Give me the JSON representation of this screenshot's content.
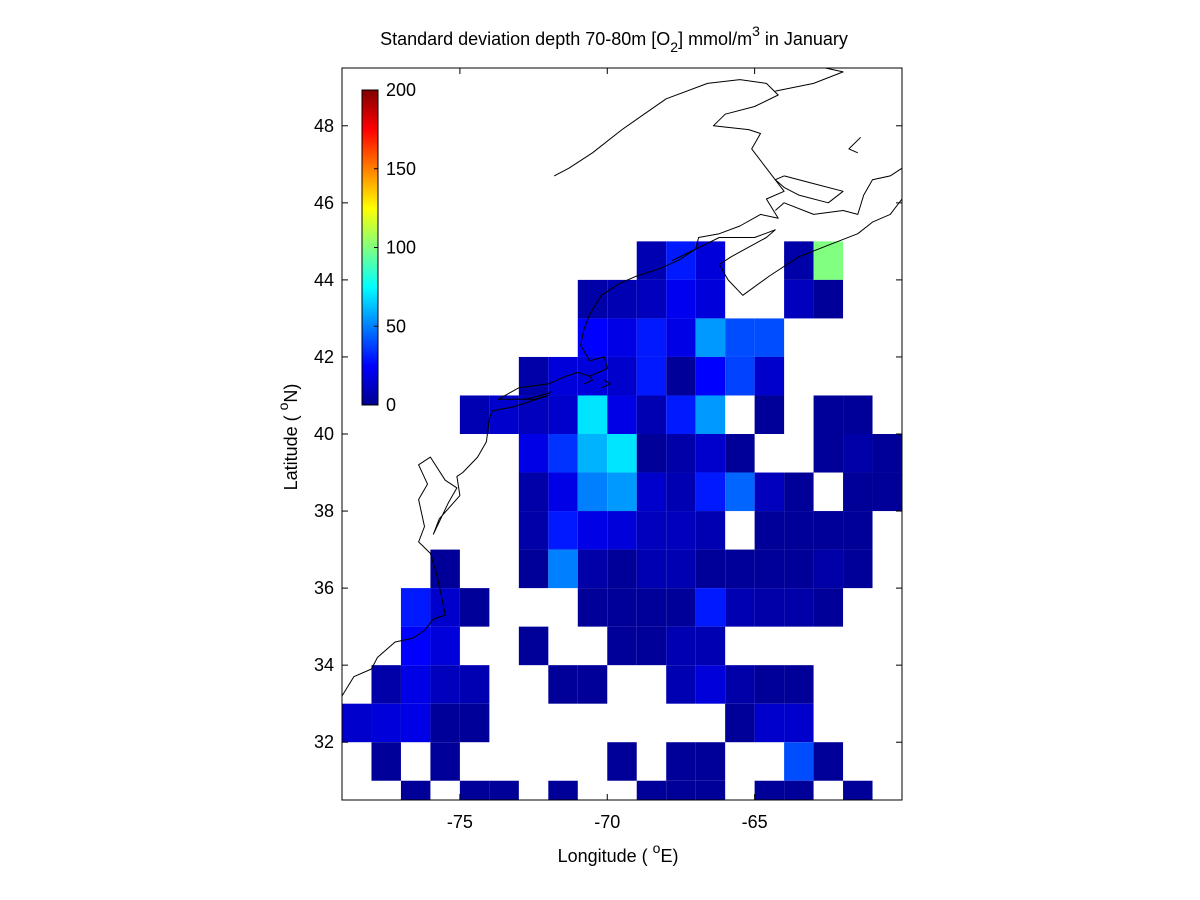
{
  "chart_data": {
    "type": "heatmap",
    "title": {
      "prefix": "Standard deviation depth 70-80m [O",
      "sub": "2",
      "middle": "] mmol/m",
      "sup": "3",
      "suffix": " in January"
    },
    "xlabel": {
      "prefix": "Longitude ( ",
      "sup": "o",
      "suffix": "E)"
    },
    "ylabel": {
      "prefix": "Latitude ( ",
      "sup": "o",
      "suffix": "N)"
    },
    "xlim": [
      -79,
      -60
    ],
    "ylim": [
      30.5,
      49.5
    ],
    "x_ticks": [
      -75,
      -70,
      -65
    ],
    "y_ticks": [
      32,
      34,
      36,
      38,
      40,
      42,
      44,
      46,
      48
    ],
    "grid": false,
    "colormap": "jet",
    "colorbar": {
      "position": "upper-left inset",
      "clim": [
        0,
        200
      ],
      "ticks": [
        0,
        50,
        100,
        150,
        200
      ]
    },
    "cells": [
      [
        -64,
        44,
        8
      ],
      [
        -63,
        44,
        100
      ],
      [
        -69,
        44,
        10
      ],
      [
        -68,
        44,
        30
      ],
      [
        -67,
        44,
        18
      ],
      [
        -71,
        43,
        8
      ],
      [
        -70,
        43,
        10
      ],
      [
        -69,
        43,
        12
      ],
      [
        -68,
        43,
        22
      ],
      [
        -67,
        43,
        18
      ],
      [
        -64,
        43,
        12
      ],
      [
        -63,
        43,
        5
      ],
      [
        -71,
        42,
        25
      ],
      [
        -70,
        42,
        20
      ],
      [
        -69,
        42,
        30
      ],
      [
        -68,
        42,
        20
      ],
      [
        -67,
        42,
        55
      ],
      [
        -66,
        42,
        40
      ],
      [
        -65,
        42,
        40
      ],
      [
        -73,
        41,
        8
      ],
      [
        -72,
        41,
        18
      ],
      [
        -71,
        41,
        18
      ],
      [
        -70,
        41,
        15
      ],
      [
        -69,
        41,
        30
      ],
      [
        -68,
        41,
        5
      ],
      [
        -67,
        41,
        25
      ],
      [
        -66,
        41,
        38
      ],
      [
        -65,
        41,
        15
      ],
      [
        -75,
        40,
        10
      ],
      [
        -74,
        40,
        15
      ],
      [
        -73,
        40,
        12
      ],
      [
        -72,
        40,
        15
      ],
      [
        -71,
        40,
        70
      ],
      [
        -70,
        40,
        20
      ],
      [
        -69,
        40,
        10
      ],
      [
        -68,
        40,
        30
      ],
      [
        -67,
        40,
        55
      ],
      [
        -65,
        40,
        5
      ],
      [
        -63,
        40,
        5
      ],
      [
        -62,
        40,
        5
      ],
      [
        -73,
        39,
        20
      ],
      [
        -72,
        39,
        35
      ],
      [
        -71,
        39,
        60
      ],
      [
        -70,
        39,
        70
      ],
      [
        -69,
        39,
        5
      ],
      [
        -68,
        39,
        8
      ],
      [
        -67,
        39,
        15
      ],
      [
        -66,
        39,
        5
      ],
      [
        -63,
        39,
        5
      ],
      [
        -62,
        39,
        8
      ],
      [
        -61,
        39,
        5
      ],
      [
        -73,
        38,
        8
      ],
      [
        -72,
        38,
        20
      ],
      [
        -71,
        38,
        50
      ],
      [
        -70,
        38,
        55
      ],
      [
        -69,
        38,
        15
      ],
      [
        -68,
        38,
        10
      ],
      [
        -67,
        38,
        30
      ],
      [
        -66,
        38,
        45
      ],
      [
        -65,
        38,
        12
      ],
      [
        -64,
        38,
        5
      ],
      [
        -62,
        38,
        5
      ],
      [
        -61,
        38,
        5
      ],
      [
        -73,
        37,
        8
      ],
      [
        -72,
        37,
        30
      ],
      [
        -71,
        37,
        20
      ],
      [
        -70,
        37,
        18
      ],
      [
        -69,
        37,
        12
      ],
      [
        -68,
        37,
        12
      ],
      [
        -67,
        37,
        10
      ],
      [
        -65,
        37,
        5
      ],
      [
        -64,
        37,
        5
      ],
      [
        -63,
        37,
        5
      ],
      [
        -62,
        37,
        5
      ],
      [
        -76,
        36,
        5
      ],
      [
        -73,
        36,
        5
      ],
      [
        -72,
        36,
        50
      ],
      [
        -71,
        36,
        8
      ],
      [
        -70,
        36,
        5
      ],
      [
        -69,
        36,
        10
      ],
      [
        -68,
        36,
        10
      ],
      [
        -67,
        36,
        5
      ],
      [
        -66,
        36,
        5
      ],
      [
        -65,
        36,
        5
      ],
      [
        -64,
        36,
        5
      ],
      [
        -63,
        36,
        8
      ],
      [
        -62,
        36,
        5
      ],
      [
        -60,
        36,
        8
      ],
      [
        -77,
        35,
        30
      ],
      [
        -76,
        35,
        15
      ],
      [
        -75,
        35,
        5
      ],
      [
        -71,
        35,
        5
      ],
      [
        -70,
        35,
        5
      ],
      [
        -69,
        35,
        5
      ],
      [
        -68,
        35,
        5
      ],
      [
        -67,
        35,
        30
      ],
      [
        -66,
        35,
        10
      ],
      [
        -65,
        35,
        8
      ],
      [
        -64,
        35,
        8
      ],
      [
        -63,
        35,
        5
      ],
      [
        -60,
        35,
        5
      ],
      [
        -77,
        34,
        25
      ],
      [
        -76,
        34,
        18
      ],
      [
        -73,
        34,
        5
      ],
      [
        -70,
        34,
        5
      ],
      [
        -69,
        34,
        5
      ],
      [
        -68,
        34,
        10
      ],
      [
        -67,
        34,
        10
      ],
      [
        -60,
        34,
        5
      ],
      [
        -78,
        33,
        8
      ],
      [
        -77,
        33,
        20
      ],
      [
        -76,
        33,
        12
      ],
      [
        -75,
        33,
        10
      ],
      [
        -72,
        33,
        5
      ],
      [
        -71,
        33,
        5
      ],
      [
        -68,
        33,
        10
      ],
      [
        -67,
        33,
        18
      ],
      [
        -66,
        33,
        8
      ],
      [
        -65,
        33,
        5
      ],
      [
        -64,
        33,
        5
      ],
      [
        -60,
        33,
        5
      ],
      [
        -79,
        32,
        15
      ],
      [
        -78,
        32,
        18
      ],
      [
        -77,
        32,
        20
      ],
      [
        -76,
        32,
        5
      ],
      [
        -75,
        32,
        5
      ],
      [
        -66,
        32,
        5
      ],
      [
        -65,
        32,
        15
      ],
      [
        -64,
        32,
        15
      ],
      [
        -60,
        32,
        8
      ],
      [
        -78,
        31,
        5
      ],
      [
        -76,
        31,
        5
      ],
      [
        -70,
        31,
        5
      ],
      [
        -68,
        31,
        5
      ],
      [
        -67,
        31,
        5
      ],
      [
        -64,
        31,
        40
      ],
      [
        -63,
        31,
        5
      ],
      [
        -77,
        30.5,
        5
      ],
      [
        -75,
        30.5,
        5
      ],
      [
        -74,
        30.5,
        5
      ],
      [
        -72,
        30.5,
        5
      ],
      [
        -69,
        30.5,
        5
      ],
      [
        -68,
        30.5,
        5
      ],
      [
        -67,
        30.5,
        5
      ],
      [
        -65,
        30.5,
        5
      ],
      [
        -64,
        30.5,
        5
      ],
      [
        -62,
        30.5,
        5
      ],
      [
        -60,
        30.5,
        5
      ]
    ],
    "coastline": [
      [
        [
          -79,
          33.2
        ],
        [
          -78.6,
          33.7
        ],
        [
          -78.0,
          33.9
        ],
        [
          -77.8,
          34.2
        ],
        [
          -77.2,
          34.6
        ],
        [
          -76.6,
          34.7
        ],
        [
          -76.2,
          34.9
        ],
        [
          -75.9,
          35.2
        ],
        [
          -75.5,
          35.3
        ],
        [
          -75.6,
          35.7
        ],
        [
          -75.8,
          36.4
        ],
        [
          -76.0,
          36.9
        ],
        [
          -76.4,
          37.2
        ],
        [
          -76.2,
          37.6
        ],
        [
          -76.4,
          38.3
        ],
        [
          -76.1,
          38.7
        ],
        [
          -76.4,
          39.2
        ],
        [
          -76.0,
          39.4
        ],
        [
          -75.5,
          38.8
        ],
        [
          -75.1,
          38.6
        ],
        [
          -75.4,
          38.2
        ],
        [
          -75.9,
          37.4
        ],
        [
          -75.7,
          37.8
        ],
        [
          -75.0,
          38.4
        ],
        [
          -75.1,
          38.9
        ],
        [
          -74.9,
          39.0
        ],
        [
          -74.4,
          39.4
        ],
        [
          -74.1,
          39.8
        ],
        [
          -74.0,
          40.4
        ],
        [
          -73.9,
          40.6
        ],
        [
          -73.2,
          40.7
        ],
        [
          -72.0,
          41.0
        ],
        [
          -72.5,
          40.9
        ],
        [
          -73.7,
          40.9
        ],
        [
          -73.0,
          41.2
        ],
        [
          -72.0,
          41.3
        ],
        [
          -71.4,
          41.5
        ],
        [
          -71.0,
          41.6
        ],
        [
          -70.6,
          41.5
        ],
        [
          -70.0,
          41.7
        ],
        [
          -70.1,
          42.0
        ],
        [
          -70.6,
          41.9
        ],
        [
          -70.9,
          42.3
        ],
        [
          -70.8,
          42.7
        ],
        [
          -70.6,
          43.1
        ],
        [
          -70.2,
          43.6
        ],
        [
          -69.6,
          43.9
        ],
        [
          -69.0,
          44.1
        ],
        [
          -68.2,
          44.3
        ],
        [
          -67.6,
          44.5
        ],
        [
          -67.0,
          44.8
        ],
        [
          -66.9,
          45.1
        ],
        [
          -66.2,
          45.2
        ],
        [
          -65.5,
          45.4
        ],
        [
          -64.8,
          45.7
        ],
        [
          -64.2,
          45.6
        ],
        [
          -64.6,
          46.1
        ],
        [
          -64.0,
          46.3
        ],
        [
          -64.6,
          46.9
        ],
        [
          -65.1,
          47.4
        ],
        [
          -64.8,
          47.8
        ],
        [
          -65.2,
          47.9
        ],
        [
          -66.4,
          48.0
        ],
        [
          -66.0,
          48.3
        ],
        [
          -65.0,
          48.5
        ],
        [
          -64.2,
          48.8
        ],
        [
          -64.6,
          49.1
        ],
        [
          -65.5,
          49.2
        ],
        [
          -66.6,
          49.1
        ],
        [
          -68.0,
          48.7
        ],
        [
          -69.5,
          47.9
        ],
        [
          -70.5,
          47.3
        ],
        [
          -71.3,
          46.9
        ],
        [
          -71.8,
          46.7
        ]
      ],
      [
        [
          -67.8,
          44.5
        ],
        [
          -66.2,
          45.1
        ],
        [
          -65.0,
          45.1
        ],
        [
          -64.3,
          45.3
        ],
        [
          -64.6,
          45.1
        ],
        [
          -65.8,
          44.6
        ],
        [
          -66.2,
          44.4
        ],
        [
          -65.9,
          44.0
        ],
        [
          -65.4,
          43.6
        ],
        [
          -64.5,
          44.1
        ],
        [
          -63.5,
          44.6
        ],
        [
          -62.5,
          44.9
        ],
        [
          -61.5,
          45.2
        ],
        [
          -61.0,
          45.5
        ],
        [
          -60.4,
          45.7
        ],
        [
          -60.0,
          46.1
        ]
      ],
      [
        [
          -60.0,
          46.9
        ],
        [
          -60.4,
          46.7
        ],
        [
          -61.0,
          46.6
        ],
        [
          -61.3,
          46.2
        ],
        [
          -61.5,
          45.7
        ],
        [
          -62.0,
          45.8
        ],
        [
          -63.0,
          45.7
        ],
        [
          -64.0,
          46.0
        ],
        [
          -64.3,
          45.8
        ]
      ],
      [
        [
          -64.0,
          46.7
        ],
        [
          -63.0,
          46.5
        ],
        [
          -62.0,
          46.3
        ],
        [
          -62.5,
          46.0
        ],
        [
          -63.5,
          46.2
        ],
        [
          -64.0,
          46.4
        ],
        [
          -64.3,
          46.6
        ],
        [
          -64.0,
          46.7
        ]
      ],
      [
        [
          -61.4,
          47.7
        ],
        [
          -61.8,
          47.4
        ],
        [
          -61.5,
          47.3
        ]
      ],
      [
        [
          -64.3,
          48.9
        ],
        [
          -63.0,
          49.1
        ],
        [
          -62.0,
          49.4
        ],
        [
          -62.6,
          49.5
        ]
      ],
      [
        [
          -70.8,
          41.3
        ],
        [
          -70.5,
          41.4
        ],
        [
          -70.6,
          41.5
        ]
      ],
      [
        [
          -70.2,
          41.2
        ],
        [
          -69.9,
          41.3
        ],
        [
          -70.1,
          41.4
        ]
      ],
      [
        [
          -72.8,
          40.9
        ],
        [
          -72.0,
          41.05
        ],
        [
          -71.9,
          41.1
        ]
      ]
    ]
  }
}
